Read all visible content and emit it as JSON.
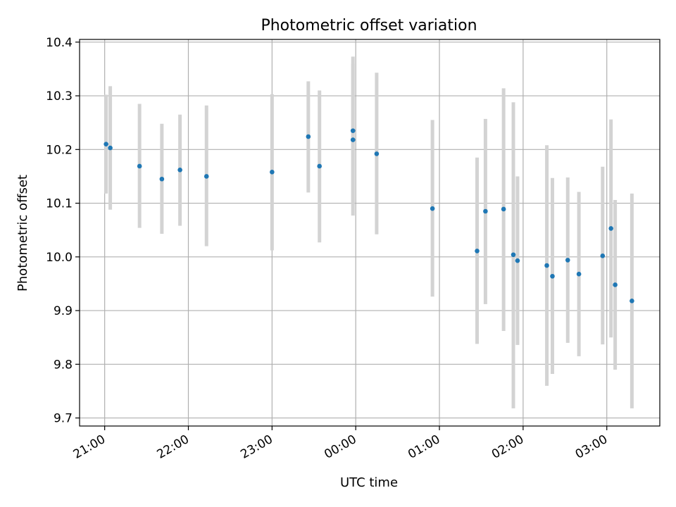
{
  "chart_data": {
    "type": "scatter",
    "title": "Photometric offset variation",
    "xlabel": "UTC time",
    "ylabel": "Photometric offset",
    "x_tick_labels": [
      "21:00",
      "22:00",
      "23:00",
      "00:00",
      "01:00",
      "02:00",
      "03:00"
    ],
    "y_tick_labels": [
      "9.7",
      "9.8",
      "9.9",
      "10.0",
      "10.1",
      "10.2",
      "10.3",
      "10.4"
    ],
    "xlim": [
      "20:42",
      "03:38"
    ],
    "ylim": [
      9.685,
      10.405
    ],
    "grid": true,
    "colors": {
      "points": "#1f77b4",
      "errorbars": "#d3d3d3",
      "grid": "#b0b0b0"
    },
    "points": [
      {
        "x": "21:01",
        "y": 10.21,
        "low": 10.118,
        "high": 10.302
      },
      {
        "x": "21:04",
        "y": 10.203,
        "low": 10.088,
        "high": 10.318
      },
      {
        "x": "21:25",
        "y": 10.169,
        "low": 10.054,
        "high": 10.285
      },
      {
        "x": "21:41",
        "y": 10.145,
        "low": 10.043,
        "high": 10.248
      },
      {
        "x": "21:54",
        "y": 10.162,
        "low": 10.058,
        "high": 10.265
      },
      {
        "x": "22:13",
        "y": 10.15,
        "low": 10.02,
        "high": 10.282
      },
      {
        "x": "23:00",
        "y": 10.158,
        "low": 10.012,
        "high": 10.303
      },
      {
        "x": "23:26",
        "y": 10.224,
        "low": 10.12,
        "high": 10.327
      },
      {
        "x": "23:34",
        "y": 10.169,
        "low": 10.027,
        "high": 10.31
      },
      {
        "x": "23:58",
        "y": 10.235,
        "low": 10.098,
        "high": 10.373
      },
      {
        "x": "23:58",
        "y": 10.218,
        "low": 10.077,
        "high": 10.36
      },
      {
        "x": "00:15",
        "y": 10.192,
        "low": 10.042,
        "high": 10.343
      },
      {
        "x": "00:55",
        "y": 10.09,
        "low": 9.926,
        "high": 10.255
      },
      {
        "x": "01:27",
        "y": 10.011,
        "low": 9.838,
        "high": 10.185
      },
      {
        "x": "01:33",
        "y": 10.085,
        "low": 9.912,
        "high": 10.257
      },
      {
        "x": "01:46",
        "y": 10.089,
        "low": 9.862,
        "high": 10.314
      },
      {
        "x": "01:53",
        "y": 10.004,
        "low": 9.718,
        "high": 10.288
      },
      {
        "x": "01:56",
        "y": 9.993,
        "low": 9.836,
        "high": 10.15
      },
      {
        "x": "02:17",
        "y": 9.984,
        "low": 9.76,
        "high": 10.208
      },
      {
        "x": "02:21",
        "y": 9.964,
        "low": 9.782,
        "high": 10.147
      },
      {
        "x": "02:32",
        "y": 9.994,
        "low": 9.84,
        "high": 10.148
      },
      {
        "x": "02:40",
        "y": 9.968,
        "low": 9.815,
        "high": 10.121
      },
      {
        "x": "02:57",
        "y": 10.002,
        "low": 9.837,
        "high": 10.168
      },
      {
        "x": "03:03",
        "y": 10.053,
        "low": 9.85,
        "high": 10.256
      },
      {
        "x": "03:06",
        "y": 9.948,
        "low": 9.79,
        "high": 10.106
      },
      {
        "x": "03:18",
        "y": 9.918,
        "low": 9.718,
        "high": 10.118
      }
    ]
  }
}
